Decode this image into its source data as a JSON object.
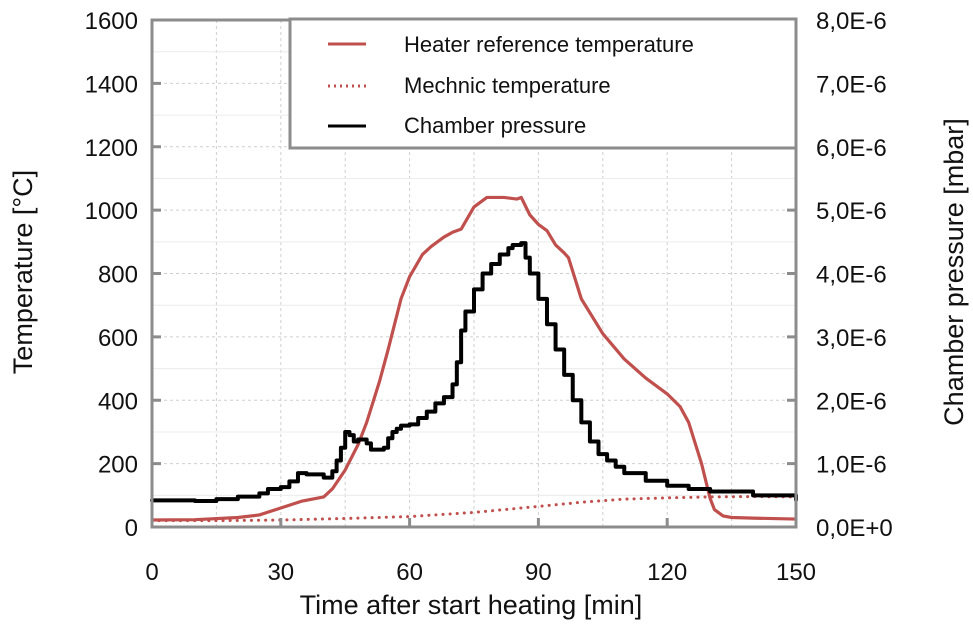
{
  "chart_data": {
    "type": "line",
    "title": "",
    "xlabel": "Time after start heating [min]",
    "ylabel": "Temperature [°C]",
    "y2label": "Chamber pressure [mbar]",
    "xlim": [
      0,
      150
    ],
    "ylim": [
      0,
      1600
    ],
    "y2lim": [
      0,
      8e-06
    ],
    "x_ticks": [
      0,
      30,
      60,
      90,
      120,
      150
    ],
    "x_tick_labels": [
      "0",
      "30",
      "60",
      "90",
      "120",
      "150"
    ],
    "y_ticks": [
      0,
      200,
      400,
      600,
      800,
      1000,
      1200,
      1400,
      1600
    ],
    "y_tick_labels": [
      "0",
      "200",
      "400",
      "600",
      "800",
      "1000",
      "1200",
      "1400",
      "1600"
    ],
    "y2_ticks": [
      0,
      1e-06,
      2e-06,
      3e-06,
      4e-06,
      5e-06,
      6e-06,
      7e-06,
      8e-06
    ],
    "y2_tick_labels": [
      "0,0E+0",
      "1,0E-6",
      "2,0E-6",
      "3,0E-6",
      "4,0E-6",
      "5,0E-6",
      "6,0E-6",
      "7,0E-6",
      "8,0E-6"
    ],
    "grid": true,
    "legend_position": "top-right",
    "colors": {
      "heater": "#c0504d",
      "mechnic": "#c0504d",
      "pressure": "#000000",
      "axis": "#8c8c8c",
      "grid": "#cfcfcf"
    },
    "series": [
      {
        "name": "Heater reference temperature",
        "axis": "left",
        "style": "solid",
        "x": [
          0,
          10,
          20,
          25,
          30,
          35,
          40,
          42,
          45,
          48,
          50,
          53,
          55,
          58,
          60,
          63,
          65,
          68,
          70,
          72,
          75,
          78,
          82,
          85,
          86,
          88,
          90,
          92,
          94,
          96,
          97,
          100,
          105,
          110,
          115,
          120,
          123,
          125,
          128,
          130,
          131,
          133,
          135,
          140,
          150
        ],
        "values": [
          22,
          23,
          30,
          38,
          60,
          82,
          95,
          120,
          180,
          260,
          330,
          460,
          560,
          720,
          790,
          860,
          885,
          915,
          930,
          940,
          1010,
          1040,
          1040,
          1035,
          1040,
          985,
          955,
          935,
          890,
          865,
          850,
          720,
          610,
          530,
          470,
          420,
          380,
          330,
          200,
          90,
          55,
          35,
          30,
          28,
          25
        ]
      },
      {
        "name": "Mechnic temperature",
        "axis": "left",
        "style": "dotted",
        "x": [
          0,
          15,
          30,
          45,
          60,
          75,
          90,
          100,
          110,
          120,
          130,
          140,
          150
        ],
        "values": [
          20,
          20,
          22,
          27,
          33,
          46,
          65,
          78,
          88,
          92,
          95,
          96,
          95
        ]
      },
      {
        "name": "Chamber pressure",
        "axis": "right",
        "style": "solid",
        "x": [
          0,
          5,
          10,
          15,
          20,
          25,
          27,
          30,
          32,
          34,
          36,
          40,
          42,
          43,
          44,
          45,
          46,
          47,
          48,
          49,
          50,
          51,
          53,
          54,
          55,
          56,
          57,
          58,
          60,
          62,
          64,
          66,
          68,
          70,
          71,
          72,
          73,
          75,
          77,
          79,
          81,
          83,
          84,
          86,
          87,
          88,
          90,
          92,
          94,
          96,
          98,
          100,
          102,
          104,
          106,
          108,
          110,
          115,
          120,
          125,
          130,
          140,
          150
        ],
        "values": [
          4.2e-07,
          4.2e-07,
          4.1e-07,
          4.4e-07,
          4.8e-07,
          5.3e-07,
          6e-07,
          6.3e-07,
          7.2e-07,
          8.5e-07,
          8.3e-07,
          7.8e-07,
          8.8e-07,
          1.05e-06,
          1.25e-06,
          1.5e-06,
          1.45e-06,
          1.35e-06,
          1.38e-06,
          1.38e-06,
          1.32e-06,
          1.22e-06,
          1.22e-06,
          1.25e-06,
          1.4e-06,
          1.5e-06,
          1.55e-06,
          1.6e-06,
          1.62e-06,
          1.72e-06,
          1.82e-06,
          1.95e-06,
          2.05e-06,
          2.25e-06,
          2.6e-06,
          3.1e-06,
          3.4e-06,
          3.75e-06,
          4e-06,
          4.15e-06,
          4.3e-06,
          4.4e-06,
          4.45e-06,
          4.48e-06,
          4.25e-06,
          4e-06,
          3.6e-06,
          3.2e-06,
          2.8e-06,
          2.4e-06,
          2e-06,
          1.65e-06,
          1.35e-06,
          1.15e-06,
          1.05e-06,
          9.5e-07,
          8.5e-07,
          7.3e-07,
          6.5e-07,
          6e-07,
          5.6e-07,
          5e-07,
          4.3e-07
        ]
      }
    ]
  }
}
